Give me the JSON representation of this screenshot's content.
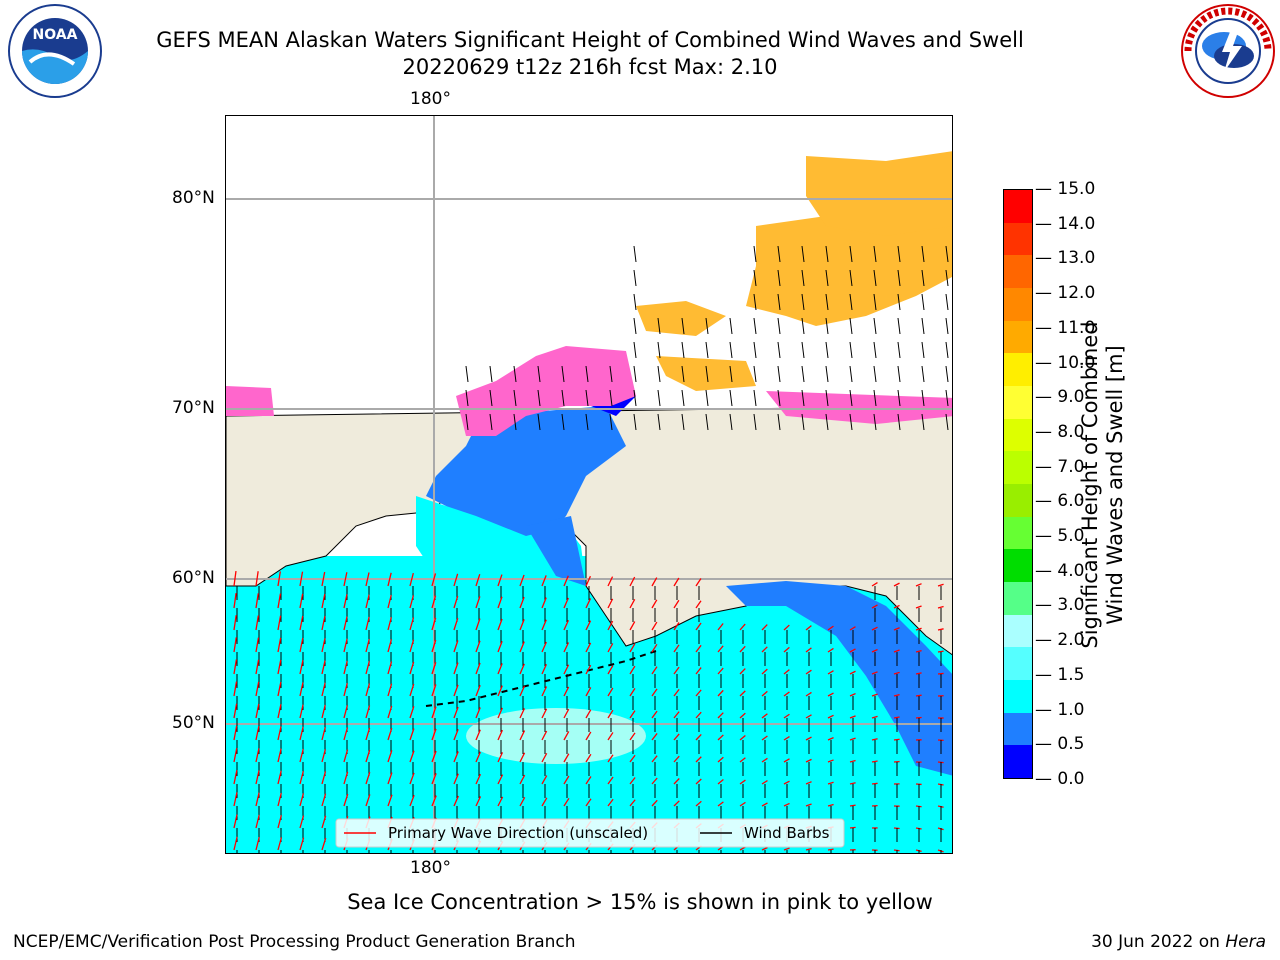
{
  "title": {
    "line1": "GEFS MEAN Alaskan Waters Significant Height of Combined Wind Waves and Swell",
    "line2": "20220629 t12z 216h fcst   Max: 2.10"
  },
  "logos": {
    "left": {
      "name": "noaa-logo",
      "text": "NOAA"
    },
    "right": {
      "name": "nws-logo",
      "text": "NATIONAL WEATHER SERVICE"
    }
  },
  "map": {
    "lon_label_top": "180°",
    "lon_label_bottom": "180°",
    "lat_labels": [
      "80°N",
      "70°N",
      "60°N",
      "50°N"
    ],
    "legend": {
      "wave_label": "Primary Wave Direction (unscaled)",
      "barb_label": "Wind Barbs",
      "wave_color": "#ff0000",
      "barb_color": "#000000"
    },
    "colors": {
      "land": "#efebdc",
      "ocean_main": "#00ffff",
      "ocean_light": "#7ffff0",
      "ocean_mid": "#1f7fff",
      "ocean_low": "#0000ff",
      "ice_pink": "#ff66cc",
      "ice_orange": "#ffbb33",
      "ice_yellow": "#ffdd33"
    }
  },
  "colorbar": {
    "ticks": [
      "15.0",
      "14.0",
      "13.0",
      "12.0",
      "11.0",
      "10.0",
      "9.0",
      "8.0",
      "7.0",
      "6.0",
      "5.0",
      "4.0",
      "3.0",
      "2.0",
      "1.5",
      "1.0",
      "0.5",
      "0.0"
    ],
    "colors": [
      "#ff0000",
      "#ff3300",
      "#ff6600",
      "#ff8800",
      "#ffaa00",
      "#ffee00",
      "#ffff33",
      "#ddff00",
      "#bbff00",
      "#99ee00",
      "#66ff33",
      "#00dd00",
      "#55ff88",
      "#aaffff",
      "#55ffff",
      "#00ffff",
      "#1f7fff",
      "#0000ff"
    ],
    "label_line1": "Significant Height of Combined",
    "label_line2": "Wind Waves and Swell [m]"
  },
  "caption": "Sea Ice Concentration > 15% is shown in pink to yellow",
  "footer": {
    "left": "NCEP/EMC/Verification Post Processing Product Generation Branch",
    "right_prefix": "30 Jun 2022 on ",
    "right_italic": "Hera"
  }
}
